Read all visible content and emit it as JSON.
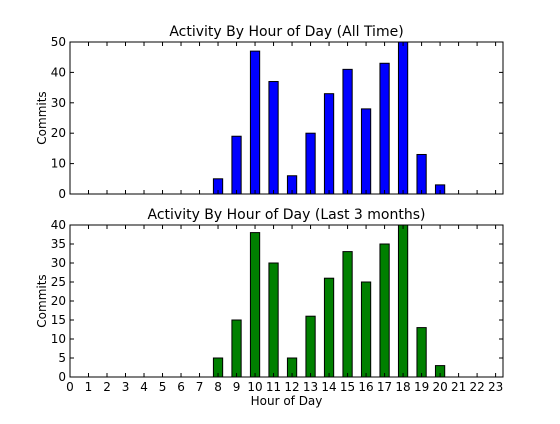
{
  "chart_data": [
    {
      "type": "bar",
      "title": "Activity By Hour of Day (All Time)",
      "xlabel": "",
      "ylabel": "Commits",
      "xlim": [
        0,
        23.4
      ],
      "ylim": [
        0,
        50
      ],
      "yticks": [
        0,
        10,
        20,
        30,
        40,
        50
      ],
      "bar_width": 0.5,
      "color": "#0000ff",
      "grid": false,
      "legend": "none",
      "x": [
        8,
        9,
        10,
        11,
        12,
        13,
        14,
        15,
        16,
        17,
        18,
        19,
        20
      ],
      "values": [
        5,
        19,
        47,
        37,
        6,
        20,
        33,
        41,
        28,
        43,
        50,
        13,
        3
      ]
    },
    {
      "type": "bar",
      "title": "Activity By Hour of Day (Last 3 months)",
      "xlabel": "Hour of Day",
      "ylabel": "Commits",
      "xlim": [
        0,
        23.4
      ],
      "ylim": [
        0,
        40
      ],
      "yticks": [
        0,
        5,
        10,
        15,
        20,
        25,
        30,
        35,
        40
      ],
      "xticks": [
        "0",
        "1",
        "2",
        "3",
        "4",
        "5",
        "6",
        "7",
        "8",
        "9",
        "10",
        "11",
        "12",
        "13",
        "14",
        "15",
        "16",
        "17",
        "18",
        "19",
        "20",
        "21",
        "22",
        "23"
      ],
      "bar_width": 0.5,
      "color": "#008000",
      "grid": false,
      "legend": "none",
      "x": [
        8,
        9,
        10,
        11,
        12,
        13,
        14,
        15,
        16,
        17,
        18,
        19,
        20
      ],
      "values": [
        5,
        15,
        38,
        30,
        5,
        16,
        26,
        33,
        25,
        35,
        40,
        13,
        3
      ]
    }
  ]
}
